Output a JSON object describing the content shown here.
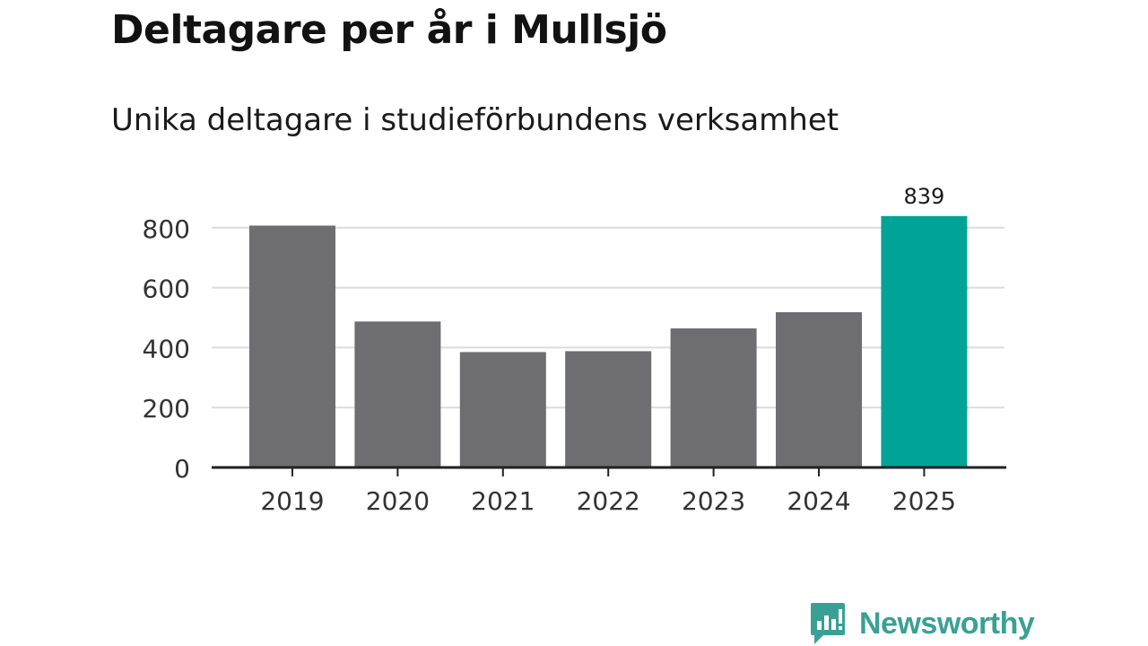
{
  "title": "Deltagare per år i Mullsjö",
  "subtitle": "Unika deltagare i studieförbundens verksamhet",
  "brand": {
    "name": "Newsworthy",
    "icon": "newsworthy-logo-icon",
    "color": "#3aa095"
  },
  "colors": {
    "bar": "#6e6d72",
    "highlight": "#00a397",
    "grid": "#dcdcdc",
    "axis": "#222222"
  },
  "chart_data": {
    "type": "bar",
    "categories": [
      "2019",
      "2020",
      "2021",
      "2022",
      "2023",
      "2024",
      "2025"
    ],
    "values": [
      807,
      487,
      385,
      388,
      464,
      518,
      839
    ],
    "highlight_index": 6,
    "data_labels": [
      {
        "index": 6,
        "text": "839"
      }
    ],
    "yticks": [
      0,
      200,
      400,
      600,
      800
    ],
    "ylim": [
      0,
      839
    ],
    "grid": true,
    "xlabel": "",
    "ylabel": ""
  }
}
